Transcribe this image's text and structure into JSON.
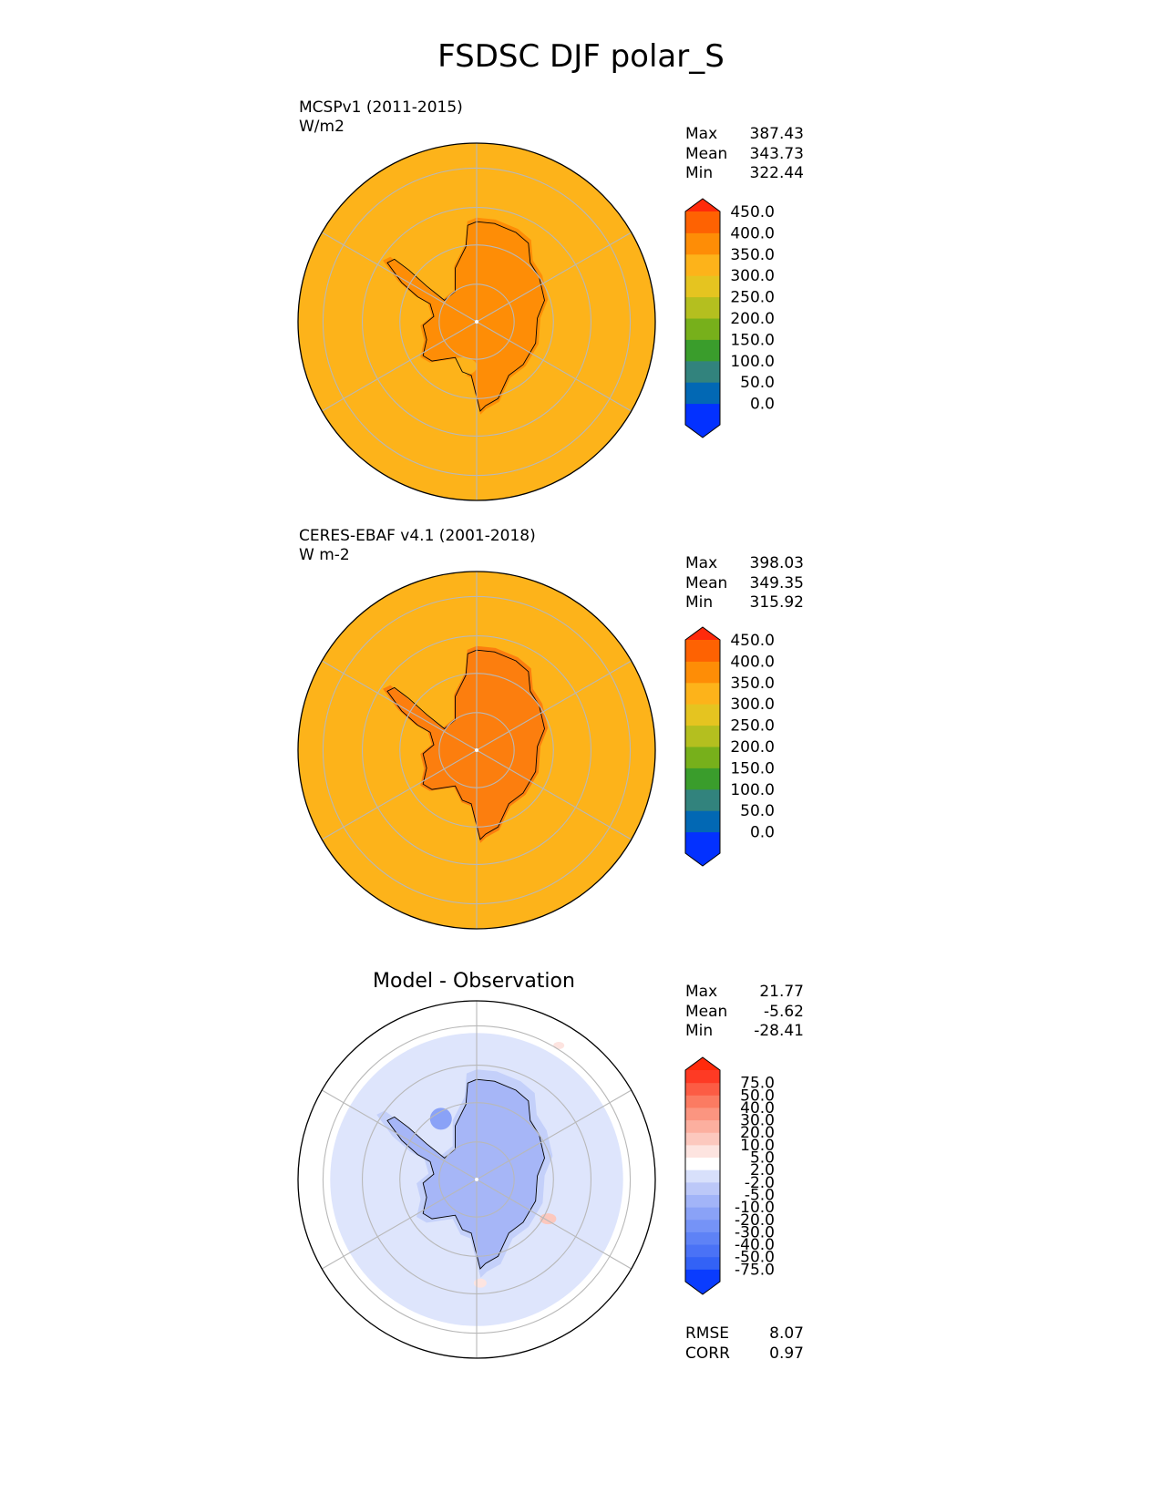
{
  "title": "FSDSC DJF polar_S",
  "colors": {
    "ocean": "#fdb31a",
    "land_model": "#fe8d06",
    "land_obs": "#fc7e0e",
    "diff_ocean": "#d8e0fb",
    "diff_land": "#a6b6f7",
    "frame": "#000000",
    "grid": "#b8b8b8"
  },
  "panels": [
    {
      "id": "model",
      "label": "MCSPv1 (2011-2015)",
      "units": "W/m2",
      "stats": [
        {
          "key": "Max",
          "value": "387.43"
        },
        {
          "key": "Mean",
          "value": "343.73"
        },
        {
          "key": "Min",
          "value": "322.44"
        }
      ],
      "colorbar": {
        "ticks": [
          "450.0",
          "400.0",
          "350.0",
          "300.0",
          "250.0",
          "200.0",
          "150.0",
          "100.0",
          "50.0",
          "0.0"
        ],
        "colors": [
          "#0331ff",
          "#0268b4",
          "#32837d",
          "#3a9d2c",
          "#77b01b",
          "#b4bf1f",
          "#e5c420",
          "#fdb31a",
          "#fe8d06",
          "#fe6202"
        ],
        "over_color": "#ff2a0b",
        "under_color": "#0331ff"
      }
    },
    {
      "id": "obs",
      "label": "CERES-EBAF v4.1 (2001-2018)",
      "units": "W m-2",
      "stats": [
        {
          "key": "Max",
          "value": "398.03"
        },
        {
          "key": "Mean",
          "value": "349.35"
        },
        {
          "key": "Min",
          "value": "315.92"
        }
      ],
      "colorbar": {
        "ticks": [
          "450.0",
          "400.0",
          "350.0",
          "300.0",
          "250.0",
          "200.0",
          "150.0",
          "100.0",
          "50.0",
          "0.0"
        ],
        "colors": [
          "#0331ff",
          "#0268b4",
          "#32837d",
          "#3a9d2c",
          "#77b01b",
          "#b4bf1f",
          "#e5c420",
          "#fdb31a",
          "#fe8d06",
          "#fe6202"
        ],
        "over_color": "#ff2a0b",
        "under_color": "#0331ff"
      }
    },
    {
      "id": "diff",
      "label": "Model - Observation",
      "stats": [
        {
          "key": "Max",
          "value": "21.77"
        },
        {
          "key": "Mean",
          "value": "-5.62"
        },
        {
          "key": "Min",
          "value": "-28.41"
        }
      ],
      "metrics": [
        {
          "key": "RMSE",
          "value": "8.07"
        },
        {
          "key": "CORR",
          "value": "0.97"
        }
      ],
      "colorbar": {
        "ticks": [
          "75.0",
          "50.0",
          "40.0",
          "30.0",
          "20.0",
          "10.0",
          "5.0",
          "2.0",
          "-2.0",
          "-5.0",
          "-10.0",
          "-20.0",
          "-30.0",
          "-40.0",
          "-50.0",
          "-75.0"
        ],
        "colors": [
          "#0a3cfe",
          "#3362f6",
          "#4a72f6",
          "#5e82f6",
          "#7593f7",
          "#8aa2f7",
          "#a2b4f8",
          "#bcc8f8",
          "#d8e0fb",
          "#ffffff",
          "#fde4e0",
          "#fcc8be",
          "#fcaf9f",
          "#fb9580",
          "#fb7b62",
          "#fc5c44",
          "#fe3a24"
        ],
        "over_color": "#ff2a0b",
        "under_color": "#0a3cfe"
      }
    }
  ],
  "chart_data": [
    {
      "type": "heatmap",
      "title": "MCSPv1 (2011-2015)",
      "units": "W/m2",
      "projection": "south polar stereographic",
      "colorbar_levels": [
        0,
        50,
        100,
        150,
        200,
        250,
        300,
        350,
        400,
        450
      ],
      "stats": {
        "max": 387.43,
        "mean": 343.73,
        "min": 322.44
      }
    },
    {
      "type": "heatmap",
      "title": "CERES-EBAF v4.1 (2001-2018)",
      "units": "W m-2",
      "projection": "south polar stereographic",
      "colorbar_levels": [
        0,
        50,
        100,
        150,
        200,
        250,
        300,
        350,
        400,
        450
      ],
      "stats": {
        "max": 398.03,
        "mean": 349.35,
        "min": 315.92
      }
    },
    {
      "type": "heatmap",
      "title": "Model - Observation",
      "projection": "south polar stereographic",
      "colorbar_levels": [
        -75,
        -50,
        -40,
        -30,
        -20,
        -10,
        -5,
        -2,
        2,
        5,
        10,
        20,
        30,
        40,
        50,
        75
      ],
      "stats": {
        "max": 21.77,
        "mean": -5.62,
        "min": -28.41
      },
      "metrics": {
        "rmse": 8.07,
        "corr": 0.97
      }
    }
  ]
}
